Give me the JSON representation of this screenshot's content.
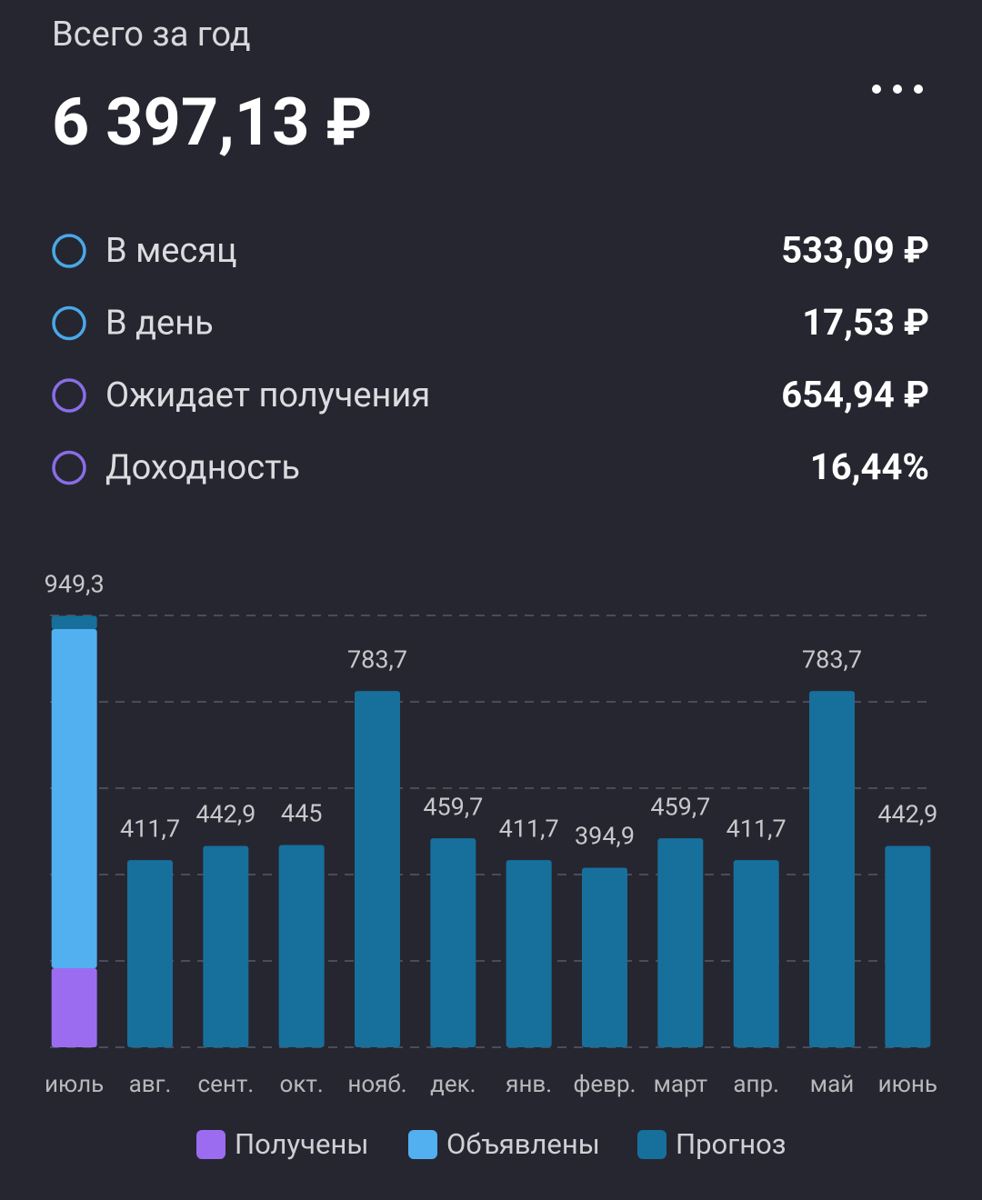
{
  "header": {
    "title": "Всего за год",
    "total": "6 397,13 ₽"
  },
  "stats": [
    {
      "label": "В месяц",
      "value": "533,09 ₽",
      "color": "#4aa8e8"
    },
    {
      "label": "В день",
      "value": "17,53 ₽",
      "color": "#4aa8e8"
    },
    {
      "label": "Ожидает получения",
      "value": "654,94 ₽",
      "color": "#8a6de8"
    },
    {
      "label": "Доходность",
      "value": "16,44%",
      "color": "#8a6de8"
    }
  ],
  "chart_data": {
    "type": "stacked_bar",
    "categories": [
      "июль",
      "авг.",
      "сент.",
      "окт.",
      "нояб.",
      "дек.",
      "янв.",
      "февр.",
      "март",
      "апр.",
      "май",
      "июнь"
    ],
    "series": [
      {
        "name": "Получены",
        "color": "#9b6cf0",
        "values": [
          174,
          null,
          null,
          null,
          null,
          null,
          null,
          null,
          null,
          null,
          null,
          null
        ]
      },
      {
        "name": "Объявлены",
        "color": "#52aff0",
        "values": [
          746,
          null,
          null,
          null,
          null,
          null,
          null,
          null,
          null,
          null,
          null,
          null
        ]
      },
      {
        "name": "Прогноз",
        "color": "#176f9c",
        "values": [
          29.3,
          411.7,
          442.9,
          445,
          783.7,
          459.7,
          411.7,
          394.9,
          459.7,
          411.7,
          783.7,
          442.9
        ]
      }
    ],
    "totals": [
      949.3,
      411.7,
      442.9,
      445,
      783.7,
      459.7,
      411.7,
      394.9,
      459.7,
      411.7,
      783.7,
      442.9
    ],
    "total_labels": [
      "949,3",
      "411,7",
      "442,9",
      "445",
      "783,7",
      "459,7",
      "411,7",
      "394,9",
      "459,7",
      "411,7",
      "783,7",
      "442,9"
    ],
    "ylim": [
      0,
      950
    ],
    "yticks": [
      0,
      190,
      380,
      570,
      760,
      950
    ],
    "grid": true,
    "tick_labels": false,
    "legend": "bottom"
  }
}
